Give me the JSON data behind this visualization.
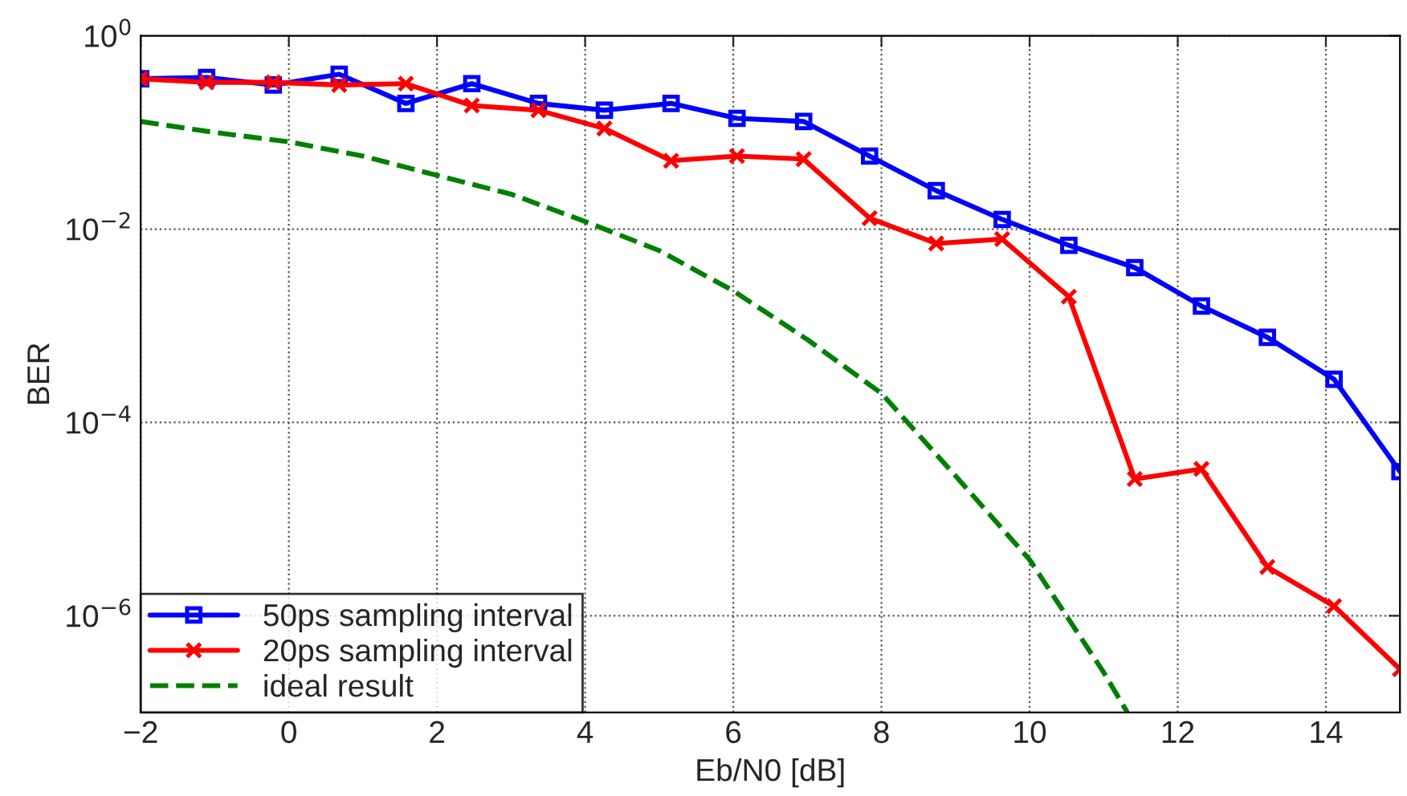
{
  "chart_data": {
    "type": "line",
    "xlabel": "Eb/N0 [dB]",
    "ylabel": "BER",
    "log": "y",
    "grid": true,
    "legend": "bottom left",
    "xlim": [
      -2,
      15
    ],
    "xticks": [
      -2,
      0,
      2,
      4,
      6,
      8,
      10,
      12,
      14
    ],
    "ylim": [
      1e-07,
      1
    ],
    "yticks": [
      {
        "value": 1,
        "label": "10$^{0}$"
      },
      {
        "value": 0.01,
        "label": "10$^{−2}$"
      },
      {
        "value": 0.0001,
        "label": "10$^{−4}$"
      },
      {
        "value": 1e-06,
        "label": "10$^{−6}$"
      }
    ],
    "x": [
      -2,
      -1.11,
      -0.21,
      0.68,
      1.58,
      2.47,
      3.37,
      4.26,
      5.16,
      6.05,
      6.95,
      7.84,
      8.74,
      9.63,
      10.53,
      11.42,
      12.32,
      13.21,
      14.11,
      15
    ],
    "series": [
      {
        "name": "50ps sampling interval",
        "color": "#0000ff",
        "marker": "square",
        "line_style": "solid",
        "values": [
          0.36,
          0.37,
          0.31,
          0.4,
          0.2,
          0.32,
          0.2,
          0.17,
          0.2,
          0.14,
          0.13,
          0.057,
          0.025,
          0.0126,
          0.0068,
          0.004,
          0.0016,
          0.00076,
          0.00028,
          3.1e-05
        ]
      },
      {
        "name": "20ps sampling interval",
        "color": "#ff0000",
        "marker": "cross",
        "line_style": "solid",
        "values": [
          0.36,
          0.33,
          0.33,
          0.31,
          0.32,
          0.19,
          0.17,
          0.11,
          0.051,
          0.057,
          0.053,
          0.013,
          0.0071,
          0.0079,
          0.002,
          2.6e-05,
          3.3e-05,
          3.2e-06,
          1.26e-06,
          2.8e-07
        ]
      },
      {
        "name": "ideal result",
        "color": "#008000",
        "marker": "none",
        "line_style": "dashed",
        "x": [
          -2,
          -1,
          0,
          1,
          2,
          3,
          4,
          5,
          6,
          7,
          8,
          9,
          10,
          11,
          11.32
        ],
        "values": [
          0.13,
          0.1,
          0.08,
          0.057,
          0.036,
          0.023,
          0.012,
          0.006,
          0.0023,
          0.00072,
          0.0002,
          2.8e-05,
          3.8e-06,
          2.6e-07,
          1e-07
        ]
      }
    ]
  }
}
